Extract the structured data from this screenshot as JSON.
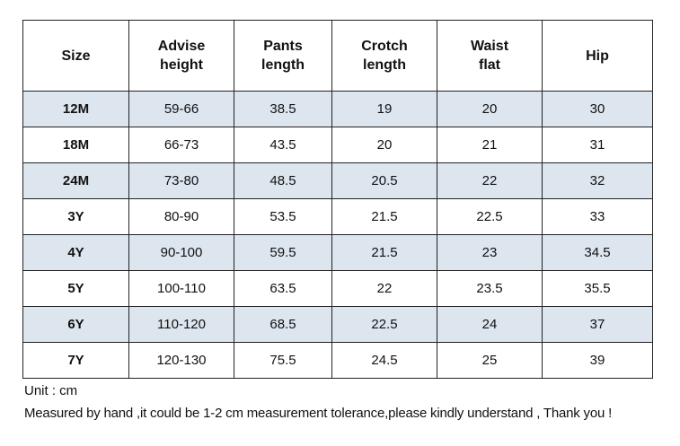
{
  "table": {
    "headers": [
      [
        "Size"
      ],
      [
        "Advise",
        "height"
      ],
      [
        "Pants",
        "length"
      ],
      [
        "Crotch",
        "length"
      ],
      [
        "Waist",
        "flat"
      ],
      [
        "Hip"
      ]
    ],
    "rows": [
      {
        "size": "12M",
        "advise_height": "59-66",
        "pants_length": "38.5",
        "crotch_length": "19",
        "waist_flat": "20",
        "hip": "30"
      },
      {
        "size": "18M",
        "advise_height": "66-73",
        "pants_length": "43.5",
        "crotch_length": "20",
        "waist_flat": "21",
        "hip": "31"
      },
      {
        "size": "24M",
        "advise_height": "73-80",
        "pants_length": "48.5",
        "crotch_length": "20.5",
        "waist_flat": "22",
        "hip": "32"
      },
      {
        "size": "3Y",
        "advise_height": "80-90",
        "pants_length": "53.5",
        "crotch_length": "21.5",
        "waist_flat": "22.5",
        "hip": "33"
      },
      {
        "size": "4Y",
        "advise_height": "90-100",
        "pants_length": "59.5",
        "crotch_length": "21.5",
        "waist_flat": "23",
        "hip": "34.5"
      },
      {
        "size": "5Y",
        "advise_height": "100-110",
        "pants_length": "63.5",
        "crotch_length": "22",
        "waist_flat": "23.5",
        "hip": "35.5"
      },
      {
        "size": "6Y",
        "advise_height": "110-120",
        "pants_length": "68.5",
        "crotch_length": "22.5",
        "waist_flat": "24",
        "hip": "37"
      },
      {
        "size": "7Y",
        "advise_height": "120-130",
        "pants_length": "75.5",
        "crotch_length": "24.5",
        "waist_flat": "25",
        "hip": "39"
      }
    ]
  },
  "notes": {
    "unit": "Unit : cm",
    "tolerance": "Measured by hand ,it could be 1-2 cm measurement tolerance,please kindly understand , Thank you !"
  },
  "colors": {
    "shaded_row": "#dde5ef",
    "border": "#222222"
  }
}
